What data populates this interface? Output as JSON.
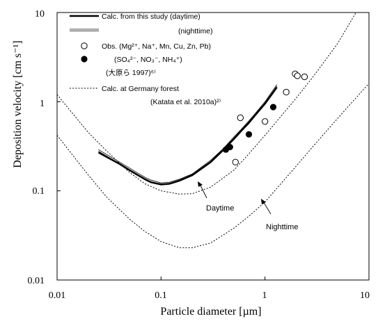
{
  "chart_data": {
    "type": "line",
    "xlabel": "Particle diameter [µm]",
    "ylabel": "Deposition velocity [cm s⁻¹]",
    "xscale": "log",
    "yscale": "log",
    "xlim": [
      0.01,
      10
    ],
    "ylim": [
      0.01,
      10
    ],
    "x_ticks": [
      "0.01",
      "0.1",
      "1",
      "10"
    ],
    "y_ticks": [
      "0.01",
      "0.1",
      "1",
      "10"
    ],
    "grid": false,
    "legend_placement": "top-left",
    "legend": [
      {
        "label": "Calc. from this study (daytime)",
        "style": "thick-line"
      },
      {
        "label": "(nighttime)",
        "style": "thin-double-line"
      },
      {
        "label": "Obs. (Mg²⁺, Na⁺, Mn, Cu, Zn, Pb)",
        "style": "open-circle"
      },
      {
        "label": "(SO₄²⁻, NO₃⁻, NH₄⁺)",
        "style": "filled-circle"
      },
      {
        "label": "(大原ら 1997)⁶⁾",
        "style": "none"
      },
      {
        "label": "Calc. at Germany forest",
        "style": "dotted-line"
      },
      {
        "label": "(Katata et al. 2010a)²⁾",
        "style": "none"
      }
    ],
    "annotations": [
      {
        "text": "Daytime",
        "x": 0.24,
        "y": 0.085
      },
      {
        "text": "Nighttime",
        "x": 0.75,
        "y": 0.058
      }
    ],
    "series": [
      {
        "name": "Calc. from this study (daytime)",
        "style": "thick",
        "color": "#000000",
        "x": [
          0.025,
          0.03,
          0.04,
          0.05,
          0.06,
          0.07,
          0.08,
          0.1,
          0.12,
          0.15,
          0.2,
          0.3,
          0.4,
          0.5,
          0.6,
          0.7,
          0.8,
          1.0,
          1.3
        ],
        "y": [
          0.27,
          0.24,
          0.2,
          0.17,
          0.15,
          0.135,
          0.125,
          0.118,
          0.12,
          0.13,
          0.15,
          0.21,
          0.29,
          0.38,
          0.48,
          0.58,
          0.7,
          0.95,
          1.45
        ]
      },
      {
        "name": "(nighttime)",
        "style": "thin-double",
        "color": "#000000",
        "x": [
          0.025,
          0.03,
          0.04,
          0.05,
          0.06,
          0.07,
          0.08,
          0.1,
          0.12,
          0.15,
          0.2,
          0.3,
          0.4,
          0.5,
          0.6,
          0.7,
          0.8,
          1.0,
          1.3
        ],
        "y": [
          0.29,
          0.255,
          0.21,
          0.18,
          0.158,
          0.142,
          0.132,
          0.123,
          0.125,
          0.135,
          0.155,
          0.22,
          0.3,
          0.4,
          0.5,
          0.61,
          0.73,
          1.0,
          1.55
        ]
      },
      {
        "name": "Calc. at Germany forest",
        "style": "dotted",
        "color": "#000000",
        "x": [
          0.01,
          0.02,
          0.03,
          0.05,
          0.07,
          0.1,
          0.15,
          0.2,
          0.3,
          0.5,
          0.7,
          1.0,
          2.0,
          3.0,
          5.0,
          7.5
        ],
        "y": [
          1.2,
          0.45,
          0.28,
          0.16,
          0.12,
          0.1,
          0.092,
          0.093,
          0.11,
          0.17,
          0.26,
          0.42,
          1.1,
          2.0,
          4.5,
          10
        ]
      },
      {
        "name": "Calc. at Germany forest",
        "style": "dotted",
        "color": "#000000",
        "x": [
          0.01,
          0.02,
          0.03,
          0.05,
          0.07,
          0.1,
          0.15,
          0.2,
          0.3,
          0.5,
          0.7,
          1.0,
          2.0,
          3.0,
          5.0,
          10
        ],
        "y": [
          0.42,
          0.15,
          0.085,
          0.048,
          0.035,
          0.027,
          0.023,
          0.023,
          0.026,
          0.038,
          0.052,
          0.075,
          0.19,
          0.33,
          0.65,
          1.6
        ]
      },
      {
        "name": "Obs. (Mg²⁺, Na⁺, Mn, Cu, Zn, Pb)",
        "style": "open-circle",
        "color": "#000000",
        "x": [
          0.52,
          0.58,
          1.0,
          1.6,
          1.95,
          2.05,
          2.4
        ],
        "y": [
          0.21,
          0.66,
          0.6,
          1.28,
          2.05,
          1.95,
          1.9
        ]
      },
      {
        "name": "(SO₄²⁻, NO₃⁻, NH₄⁺)",
        "style": "filled-circle",
        "color": "#000000",
        "x": [
          0.42,
          0.46,
          0.7,
          1.2
        ],
        "y": [
          0.29,
          0.31,
          0.43,
          0.87
        ]
      }
    ]
  }
}
